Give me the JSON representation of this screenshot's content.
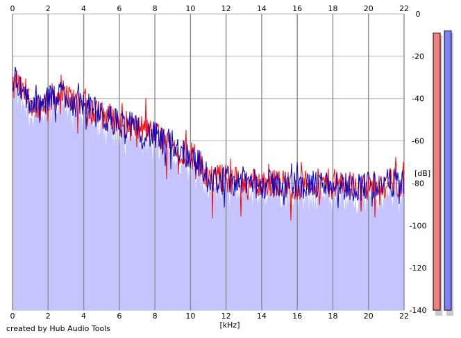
{
  "credit": "created by Hub Audio Tools",
  "chart_data": {
    "type": "line",
    "xlabel": "[kHz]",
    "ylabel": "[dB]",
    "xlim": [
      0,
      22
    ],
    "ylim": [
      -140,
      0
    ],
    "x_ticks": [
      0,
      2,
      4,
      6,
      8,
      10,
      12,
      14,
      16,
      18,
      20,
      22
    ],
    "y_ticks": [
      0,
      -20,
      -40,
      -60,
      -80,
      -100,
      -120,
      -140
    ],
    "y_tick_labels": [
      "0",
      "-20",
      "-40",
      "-60",
      "-80",
      "-100",
      "-120",
      "-140"
    ],
    "grid": true,
    "fill_color": "#c4c4ff",
    "series": [
      {
        "color": "#ff0000",
        "x": [
          0,
          0.2,
          0.5,
          1,
          1.5,
          2,
          2.5,
          3,
          3.5,
          4,
          4.5,
          5,
          5.5,
          6,
          6.5,
          7,
          7.5,
          8,
          8.5,
          9,
          9.5,
          10,
          10.5,
          11,
          12,
          13,
          14,
          15,
          16,
          17,
          18,
          19,
          20,
          21,
          22
        ],
        "values": [
          -38,
          -31,
          -37,
          -41,
          -44,
          -40,
          -39,
          -38,
          -42,
          -41,
          -46,
          -48,
          -49,
          -51,
          -53,
          -54,
          -55,
          -57,
          -60,
          -62,
          -64,
          -66,
          -70,
          -77,
          -78,
          -79,
          -80,
          -80,
          -81,
          -80,
          -80,
          -81,
          -81,
          -80,
          -80
        ]
      },
      {
        "color": "#0000cc",
        "x": [
          0,
          0.2,
          0.5,
          1,
          1.5,
          2,
          2.5,
          3,
          3.5,
          4,
          4.5,
          5,
          5.5,
          6,
          6.5,
          7,
          7.5,
          8,
          8.5,
          9,
          9.5,
          10,
          10.5,
          11,
          12,
          13,
          14,
          15,
          16,
          17,
          18,
          19,
          20,
          21,
          22
        ],
        "values": [
          -36,
          -28,
          -38,
          -42,
          -45,
          -41,
          -38,
          -37,
          -43,
          -42,
          -45,
          -49,
          -50,
          -52,
          -52,
          -55,
          -56,
          -58,
          -61,
          -61,
          -65,
          -67,
          -71,
          -78,
          -79,
          -79,
          -81,
          -80,
          -81,
          -81,
          -80,
          -82,
          -81,
          -80,
          -79
        ]
      }
    ],
    "level_meters": [
      {
        "color": "#f08080",
        "level_db": -9
      },
      {
        "color": "#8080ff",
        "level_db": -8
      }
    ]
  }
}
